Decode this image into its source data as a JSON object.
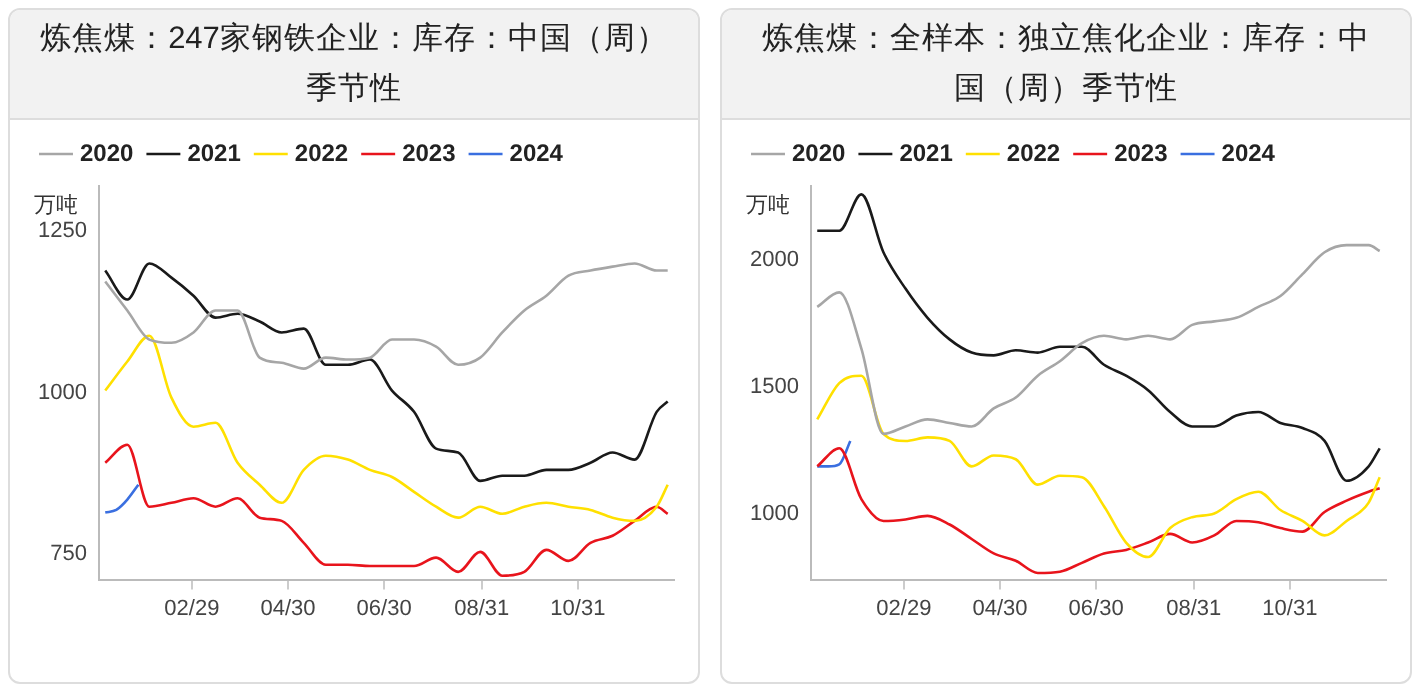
{
  "chart_data": [
    {
      "type": "line",
      "title": "炼焦煤：247家钢铁企业：库存：中国（周）季节性",
      "ylabel": "万吨",
      "legend": "top",
      "grid": false,
      "marker": "none",
      "x": [
        "--01-05",
        "--01-19",
        "--02-02",
        "--02-16",
        "--03-01",
        "--03-15",
        "--03-29",
        "--04-12",
        "--04-26",
        "--05-10",
        "--05-24",
        "--06-07",
        "--06-21",
        "--07-05",
        "--07-19",
        "--08-02",
        "--08-16",
        "--08-30",
        "--09-13",
        "--09-27",
        "--10-11",
        "--10-25",
        "--11-08",
        "--11-22",
        "--12-06",
        "--12-20",
        "--12-27"
      ],
      "xlim": [
        "--01-01",
        "--12-31"
      ],
      "xticks": [
        {
          "value": "--02-29",
          "label": "02/29"
        },
        {
          "value": "--04-30",
          "label": "04/30"
        },
        {
          "value": "--06-30",
          "label": "06/30"
        },
        {
          "value": "--08-31",
          "label": "08/31"
        },
        {
          "value": "--10-31",
          "label": "10/31"
        }
      ],
      "ylim": [
        710,
        1320
      ],
      "yticks": [
        750,
        1000,
        1250
      ],
      "series": [
        {
          "name": "2020",
          "color": "#a6a6a6",
          "values": [
            1172,
            1127,
            1082,
            1077,
            1093,
            1127,
            1127,
            1054,
            1046,
            1037,
            1054,
            1051,
            1054,
            1082,
            1082,
            1071,
            1043,
            1054,
            1093,
            1127,
            1150,
            1181,
            1189,
            1195,
            1200,
            1189,
            1189
          ]
        },
        {
          "name": "2021",
          "color": "#1a1a1a",
          "values": [
            1189,
            1144,
            1200,
            1178,
            1150,
            1116,
            1122,
            1110,
            1093,
            1099,
            1043,
            1043,
            1051,
            1003,
            970,
            913,
            907,
            863,
            871,
            871,
            880,
            880,
            891,
            907,
            896,
            970,
            986
          ]
        },
        {
          "name": "2022",
          "color": "#ffe000",
          "values": [
            1003,
            1048,
            1088,
            992,
            947,
            953,
            891,
            857,
            829,
            880,
            902,
            896,
            880,
            869,
            846,
            823,
            806,
            823,
            812,
            823,
            829,
            823,
            818,
            806,
            801,
            823,
            857
          ]
        },
        {
          "name": "2023",
          "color": "#e8141c",
          "values": [
            891,
            919,
            823,
            829,
            836,
            823,
            836,
            806,
            801,
            767,
            733,
            733,
            731,
            731,
            731,
            744,
            722,
            753,
            716,
            722,
            756,
            739,
            767,
            778,
            801,
            823,
            812
          ]
        },
        {
          "name": "2024",
          "color": "#3a6fe0",
          "x": [
            "--01-05",
            "--01-12",
            "--01-19",
            "--01-26"
          ],
          "values": [
            814,
            818,
            834,
            857
          ]
        }
      ]
    },
    {
      "type": "line",
      "title": "炼焦煤：全样本：独立焦化企业：库存：中国（周）季节性",
      "ylabel": "万吨",
      "legend": "top",
      "grid": false,
      "marker": "none",
      "x": [
        "--01-05",
        "--01-19",
        "--02-02",
        "--02-16",
        "--03-01",
        "--03-15",
        "--03-29",
        "--04-12",
        "--04-26",
        "--05-10",
        "--05-24",
        "--06-07",
        "--06-21",
        "--07-05",
        "--07-19",
        "--08-02",
        "--08-16",
        "--08-30",
        "--09-13",
        "--09-27",
        "--10-11",
        "--10-25",
        "--11-08",
        "--11-22",
        "--12-06",
        "--12-20",
        "--12-27"
      ],
      "xlim": [
        "--01-01",
        "--12-31"
      ],
      "xticks": [
        {
          "value": "--02-29",
          "label": "02/29"
        },
        {
          "value": "--04-30",
          "label": "04/30"
        },
        {
          "value": "--06-30",
          "label": "06/30"
        },
        {
          "value": "--08-31",
          "label": "08/31"
        },
        {
          "value": "--10-31",
          "label": "10/31"
        }
      ],
      "ylim": [
        740,
        2290
      ],
      "yticks": [
        1000,
        1500,
        2000
      ],
      "series": [
        {
          "name": "2020",
          "color": "#a6a6a6",
          "values": [
            1814,
            1871,
            1650,
            1314,
            1343,
            1371,
            1357,
            1343,
            1414,
            1457,
            1543,
            1600,
            1671,
            1700,
            1686,
            1700,
            1686,
            1743,
            1757,
            1771,
            1814,
            1857,
            1943,
            2029,
            2057,
            2057,
            2034
          ]
        },
        {
          "name": "2021",
          "color": "#1a1a1a",
          "values": [
            2114,
            2114,
            2257,
            2029,
            1886,
            1771,
            1686,
            1634,
            1623,
            1643,
            1634,
            1657,
            1657,
            1586,
            1543,
            1486,
            1400,
            1343,
            1343,
            1386,
            1400,
            1357,
            1337,
            1286,
            1129,
            1186,
            1257
          ]
        },
        {
          "name": "2022",
          "color": "#ffe000",
          "values": [
            1371,
            1514,
            1543,
            1314,
            1286,
            1300,
            1286,
            1186,
            1229,
            1214,
            1114,
            1149,
            1143,
            1029,
            886,
            829,
            943,
            986,
            1000,
            1057,
            1086,
            1014,
            971,
            914,
            971,
            1043,
            1143
          ]
        },
        {
          "name": "2023",
          "color": "#e8141c",
          "values": [
            1186,
            1257,
            1057,
            971,
            977,
            991,
            957,
            900,
            843,
            814,
            766,
            771,
            806,
            843,
            857,
            886,
            920,
            886,
            914,
            971,
            966,
            943,
            929,
            1006,
            1051,
            1086,
            1100
          ]
        },
        {
          "name": "2024",
          "color": "#3a6fe0",
          "x": [
            "--01-05",
            "--01-12",
            "--01-19",
            "--01-26"
          ],
          "values": [
            1186,
            1186,
            1194,
            1286
          ]
        }
      ]
    }
  ]
}
